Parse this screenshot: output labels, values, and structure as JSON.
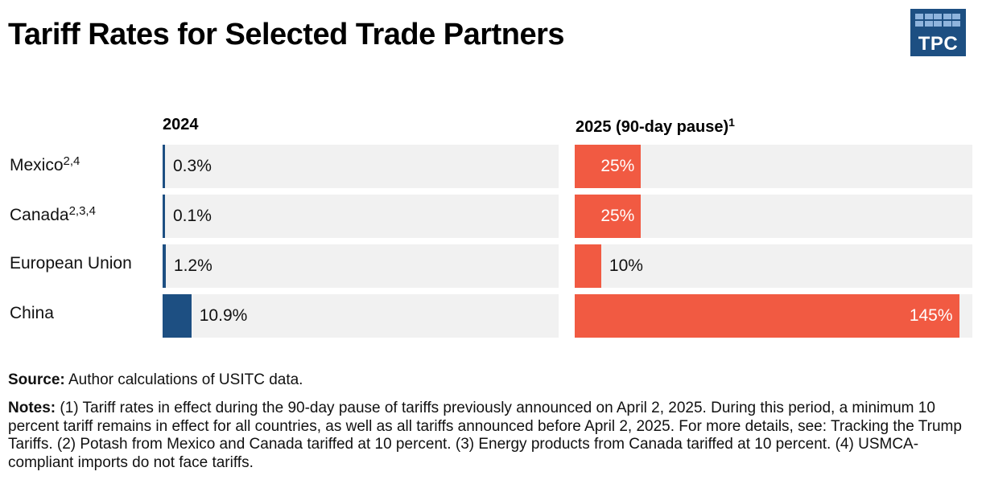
{
  "title": "Tariff Rates for Selected Trade Partners",
  "logo_text": "TPC",
  "colors": {
    "bar_2024": "#1d4f82",
    "bar_2025": "#f15a42",
    "track": "#f1f1f1"
  },
  "chart_data": {
    "type": "bar",
    "orientation": "horizontal",
    "categories": [
      "Mexico",
      "Canada",
      "European Union",
      "China"
    ],
    "category_footnotes": [
      "2,4",
      "2,3,4",
      "",
      ""
    ],
    "panels": [
      {
        "title": "2024",
        "title_footnote": "",
        "values": [
          0.3,
          0.1,
          1.2,
          10.9
        ],
        "labels": [
          "0.3%",
          "0.1%",
          "1.2%",
          "10.9%"
        ],
        "xlim": [
          0,
          150
        ]
      },
      {
        "title": "2025 (90-day pause)",
        "title_footnote": "1",
        "values": [
          25,
          25,
          10,
          145
        ],
        "labels": [
          "25%",
          "25%",
          "10%",
          "145%"
        ],
        "xlim": [
          0,
          150
        ]
      }
    ],
    "unit": "%"
  },
  "source": {
    "label": "Source:",
    "text": " Author calculations of USITC data."
  },
  "notes": {
    "label": "Notes:",
    "text": " (1) Tariff rates in effect during the 90-day pause of tariffs previously announced on April 2, 2025. During this period, a minimum 10 percent tariff remains in effect for all countries, as well as all tariffs announced before April 2, 2025. For more details, see: Tracking the Trump Tariffs. (2) Potash from Mexico and Canada tariffed at 10 percent. (3) Energy products from Canada tariffed at 10 percent. (4) USMCA-compliant imports do not face tariffs."
  }
}
